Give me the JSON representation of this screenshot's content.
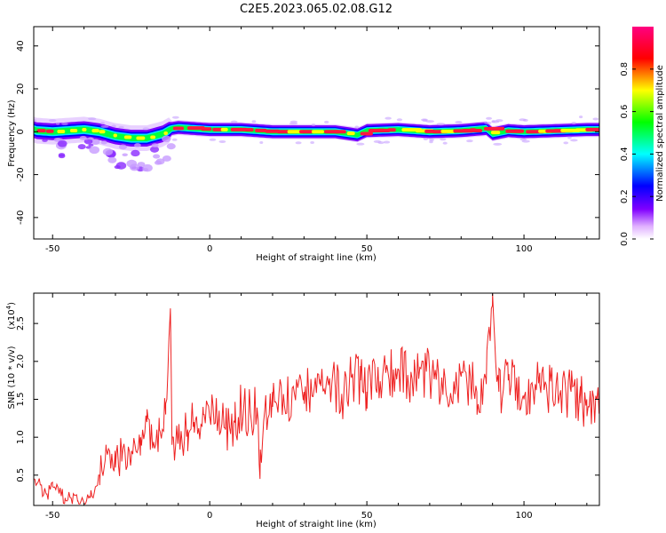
{
  "chart_data": [
    {
      "type": "heatmap",
      "title": "C2E5.2023.065.02.08.G12",
      "xlabel": "Height of straight line (km)",
      "ylabel": "Frequency (Hz)",
      "xlim": [
        -56,
        124
      ],
      "ylim": [
        -50,
        49
      ],
      "xticks": [
        -50,
        0,
        50,
        100
      ],
      "yticks": [
        -40,
        -20,
        0,
        20,
        40
      ],
      "xtick_labels": [
        "-50",
        "0",
        "50",
        "100"
      ],
      "ytick_labels": [
        "-40",
        "-20",
        "0",
        "20",
        "40"
      ],
      "colorbar": {
        "label": "Normalized spectral amplitude",
        "range": [
          0,
          1
        ],
        "ticks": [
          0.0,
          0.2,
          0.4,
          0.6,
          0.8
        ],
        "tick_labels": [
          "0.0",
          "0.2",
          "0.4",
          "0.6",
          "0.8"
        ],
        "colormap": [
          "#ffffff",
          "#8000ff",
          "#0000ff",
          "#00ffff",
          "#00ff00",
          "#ffff00",
          "#ff0000",
          "#ff0080"
        ]
      },
      "ridge": {
        "x": [
          -55,
          -50,
          -45,
          -40,
          -35,
          -30,
          -25,
          -20,
          -15,
          -12,
          -10,
          -5,
          0,
          10,
          20,
          30,
          40,
          47,
          50,
          60,
          70,
          80,
          88,
          90,
          95,
          100,
          110,
          120,
          124
        ],
        "frequency": [
          0.5,
          0,
          0.5,
          1,
          0,
          -2,
          -3,
          -3,
          -1,
          1.5,
          2,
          1.5,
          1,
          1,
          0,
          0,
          0,
          -1.5,
          0.5,
          1,
          0,
          0.5,
          1.5,
          -1,
          0.5,
          0,
          0.5,
          1,
          1
        ]
      }
    },
    {
      "type": "line",
      "xlabel": "Height of straight line (km)",
      "ylabel": "SNR (10 * v/v)",
      "scale_label": "(x10",
      "scale_exponent": "4",
      "scale_close": ")",
      "xlim": [
        -56,
        124
      ],
      "ylim": [
        0.1,
        2.9
      ],
      "xticks": [
        -50,
        0,
        50,
        100
      ],
      "yticks": [
        0.5,
        1.0,
        1.5,
        2.0,
        2.5
      ],
      "xtick_labels": [
        "-50",
        "0",
        "50",
        "100"
      ],
      "ytick_labels": [
        "0.5",
        "1.0",
        "1.5",
        "2.0",
        "2.5"
      ],
      "line_color": "#ee2222",
      "series": [
        {
          "name": "SNR",
          "x": [
            -56,
            -52,
            -50,
            -46,
            -42,
            -38,
            -35,
            -33,
            -30,
            -28,
            -25,
            -22,
            -20,
            -18,
            -16,
            -14,
            -12.5,
            -12,
            -10,
            -7,
            -5,
            -2,
            0,
            3,
            5,
            8,
            10,
            15,
            16,
            18,
            20,
            25,
            30,
            35,
            40,
            42,
            45,
            48,
            50,
            55,
            60,
            65,
            70,
            75,
            80,
            85,
            88,
            90,
            92,
            95,
            100,
            105,
            110,
            115,
            118,
            120,
            124
          ],
          "values": [
            0.45,
            0.25,
            0.35,
            0.2,
            0.15,
            0.2,
            0.5,
            0.9,
            0.6,
            0.8,
            0.7,
            1.0,
            1.2,
            0.9,
            1.1,
            1.3,
            2.7,
            0.9,
            1.0,
            1.1,
            1.2,
            1.3,
            1.25,
            1.35,
            1.1,
            1.2,
            1.4,
            1.3,
            0.45,
            1.3,
            1.4,
            1.5,
            1.6,
            1.7,
            1.65,
            1.55,
            1.8,
            1.75,
            1.6,
            1.8,
            1.9,
            1.75,
            1.85,
            1.7,
            1.8,
            1.6,
            1.7,
            2.9,
            1.6,
            1.75,
            1.5,
            1.7,
            1.55,
            1.6,
            1.45,
            1.5,
            1.35
          ]
        }
      ]
    }
  ]
}
